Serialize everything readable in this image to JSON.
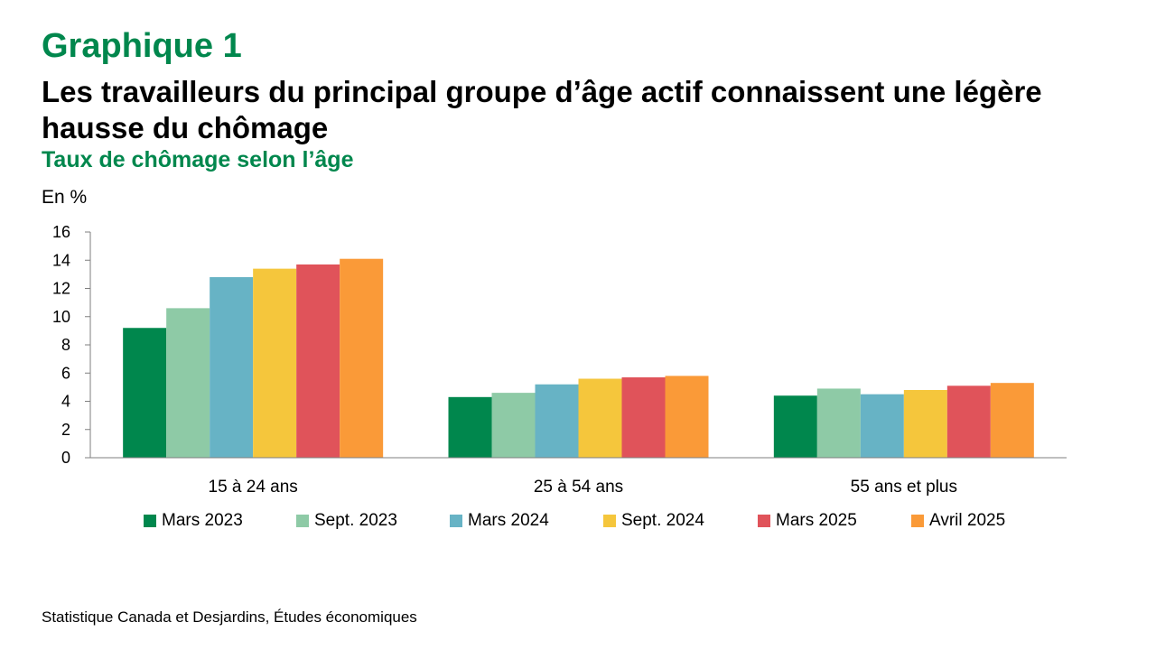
{
  "header": {
    "kicker": "Graphique 1",
    "title": "Les travailleurs du principal groupe d’âge actif connaissent une légère hausse du chômage",
    "subtitle": "Taux de chômage selon l’âge"
  },
  "source": "Statistique Canada et Desjardins, Études économiques",
  "chart_data": {
    "type": "bar",
    "ylabel": "En %",
    "ylim": [
      0,
      16
    ],
    "yticks": [
      0,
      2,
      4,
      6,
      8,
      10,
      12,
      14,
      16
    ],
    "categories": [
      "15 à 24 ans",
      "25 à 54 ans",
      "55 ans et plus"
    ],
    "series": [
      {
        "name": "Mars 2023",
        "color": "#00874d",
        "values": [
          9.2,
          4.3,
          4.4
        ]
      },
      {
        "name": "Sept. 2023",
        "color": "#8ecaa6",
        "values": [
          10.6,
          4.6,
          4.9
        ]
      },
      {
        "name": "Mars 2024",
        "color": "#67b3c5",
        "values": [
          12.8,
          5.2,
          4.5
        ]
      },
      {
        "name": "Sept. 2024",
        "color": "#f5c63c",
        "values": [
          13.4,
          5.6,
          4.8
        ]
      },
      {
        "name": "Mars 2025",
        "color": "#e0535a",
        "values": [
          13.7,
          5.7,
          5.1
        ]
      },
      {
        "name": "Avril 2025",
        "color": "#fa9a38",
        "values": [
          14.1,
          5.8,
          5.3
        ]
      }
    ],
    "legend_position": "bottom",
    "grid": false
  }
}
